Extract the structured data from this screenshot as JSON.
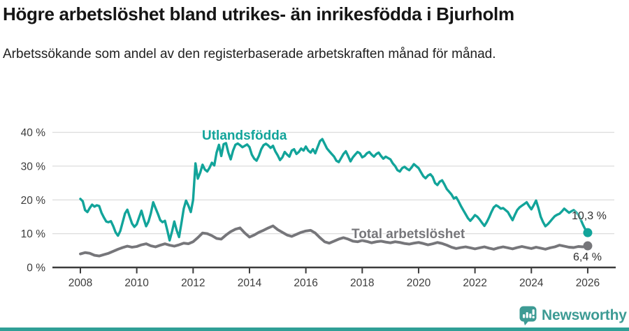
{
  "header": {
    "title": "Högre arbetslöshet bland utrikes- än inrikesfödda i Bjurholm",
    "subtitle": "Arbetssökande som andel av den registerbaserade arbetskraften månad för månad."
  },
  "footer": {
    "brand": "Newsworthy",
    "logo_icon": "newsworthy-speech-bubble-chart-icon",
    "accent_color": "#2f9f96"
  },
  "chart_data": {
    "type": "line",
    "title": "Högre arbetslöshet bland utrikes- än inrikesfödda i Bjurholm",
    "subtitle": "Arbetssökande som andel av den registerbaserade arbetskraften månad för månad.",
    "xlabel": "",
    "ylabel": "",
    "ylim": [
      0,
      40
    ],
    "xlim": [
      2007.6,
      2026.6
    ],
    "grid": "horizontal-only",
    "legend_position": "inline-labels",
    "yticks": [
      0,
      10,
      20,
      30,
      40
    ],
    "ytick_labels": [
      "0 %",
      "10 %",
      "20 %",
      "30 %",
      "40 %"
    ],
    "xticks": [
      2008,
      2010,
      2012,
      2014,
      2016,
      2018,
      2020,
      2022,
      2024,
      2026
    ],
    "xtick_labels": [
      "2008",
      "2010",
      "2012",
      "2014",
      "2016",
      "2018",
      "2020",
      "2022",
      "2024",
      "2026"
    ],
    "colors": {
      "utlandsfodda": "#12a49a",
      "total": "#76767a",
      "grid": "#dcdcdc",
      "axis": "#3c3c3c"
    },
    "series_labels": {
      "utlandsfodda": "Utlandsfödda",
      "total": "Total arbetslöshet"
    },
    "end_labels": {
      "utlandsfodda": "10,3 %",
      "total": "6,4 %"
    },
    "end_values": {
      "utlandsfodda": 10.3,
      "total": 6.4
    },
    "series": [
      {
        "name": "Utlandsfödda",
        "color_key": "utlandsfodda",
        "start_year": 2008.0,
        "step_months": 1,
        "values": [
          20.3,
          19.6,
          17.0,
          16.4,
          17.6,
          18.6,
          18.0,
          18.4,
          18.2,
          16.2,
          14.8,
          13.6,
          13.4,
          13.7,
          12.2,
          10.4,
          9.4,
          10.8,
          13.4,
          16.0,
          17.1,
          15.0,
          13.0,
          12.0,
          12.8,
          14.8,
          16.8,
          14.4,
          12.2,
          13.6,
          16.0,
          19.3,
          17.6,
          15.9,
          14.0,
          13.4,
          13.8,
          11.0,
          8.0,
          10.6,
          13.6,
          11.0,
          9.0,
          13.0,
          17.4,
          19.8,
          18.3,
          16.4,
          20.0,
          30.8,
          26.3,
          28.0,
          30.4,
          29.0,
          28.4,
          29.5,
          31.0,
          30.2,
          34.0,
          36.3,
          33.0,
          36.5,
          36.8,
          34.0,
          32.0,
          34.6,
          36.3,
          36.7,
          36.2,
          35.6,
          36.0,
          36.4,
          35.6,
          33.4,
          32.2,
          31.6,
          33.0,
          35.0,
          36.2,
          36.6,
          36.1,
          35.4,
          36.0,
          34.4,
          33.2,
          31.8,
          32.6,
          34.2,
          33.4,
          32.8,
          34.6,
          35.0,
          33.6,
          34.2,
          35.2,
          34.6,
          35.8,
          34.6,
          34.0,
          35.0,
          33.8,
          35.6,
          37.4,
          38.0,
          36.6,
          35.2,
          34.4,
          33.6,
          32.8,
          31.6,
          31.2,
          32.4,
          33.6,
          34.4,
          33.0,
          31.4,
          32.6,
          33.4,
          34.2,
          33.8,
          32.6,
          33.0,
          33.8,
          34.2,
          33.4,
          32.8,
          33.6,
          34.0,
          33.0,
          32.2,
          32.8,
          32.4,
          32.0,
          30.8,
          30.0,
          28.8,
          28.4,
          29.4,
          29.8,
          29.2,
          28.8,
          29.6,
          30.6,
          30.0,
          29.4,
          28.2,
          27.0,
          26.4,
          27.2,
          27.6,
          26.8,
          25.0,
          24.4,
          25.4,
          25.8,
          24.6,
          23.2,
          22.4,
          21.6,
          20.4,
          20.8,
          19.6,
          18.2,
          17.0,
          15.8,
          14.6,
          13.8,
          14.6,
          15.5,
          15.0,
          14.2,
          13.2,
          12.3,
          13.4,
          14.8,
          16.4,
          17.8,
          18.4,
          18.0,
          17.4,
          17.6,
          17.0,
          16.4,
          15.2,
          14.0,
          15.6,
          17.0,
          17.8,
          18.3,
          18.8,
          19.3,
          18.2,
          17.2,
          18.4,
          19.8,
          17.6,
          15.0,
          13.4,
          12.2,
          12.8,
          13.6,
          14.4,
          15.2,
          15.6,
          15.9,
          16.6,
          17.4,
          16.8,
          16.2,
          16.6,
          17.0,
          16.4,
          15.6,
          14.2,
          12.6,
          11.2,
          10.3
        ]
      },
      {
        "name": "Total arbetslöshet",
        "color_key": "total",
        "start_year": 2008.0,
        "step_months": 2,
        "values": [
          4.0,
          4.4,
          4.2,
          3.6,
          3.4,
          3.8,
          4.2,
          4.8,
          5.4,
          5.9,
          6.3,
          6.0,
          6.2,
          6.7,
          7.0,
          6.4,
          6.1,
          6.6,
          7.0,
          6.6,
          6.3,
          6.7,
          7.2,
          7.0,
          7.6,
          8.8,
          10.2,
          10.0,
          9.4,
          8.6,
          8.4,
          9.6,
          10.6,
          11.3,
          11.7,
          10.2,
          9.0,
          9.6,
          10.4,
          11.0,
          11.7,
          12.3,
          11.2,
          10.4,
          9.6,
          9.2,
          9.8,
          10.4,
          10.8,
          11.0,
          10.2,
          8.8,
          7.6,
          7.2,
          7.8,
          8.4,
          8.8,
          8.4,
          7.8,
          7.6,
          8.0,
          7.7,
          7.3,
          7.6,
          7.8,
          7.5,
          7.3,
          7.6,
          7.4,
          7.1,
          6.9,
          7.2,
          7.4,
          7.1,
          6.7,
          7.0,
          7.4,
          7.1,
          6.6,
          6.0,
          5.6,
          5.9,
          6.1,
          5.8,
          5.5,
          5.8,
          6.1,
          5.7,
          5.4,
          5.8,
          6.1,
          5.8,
          5.5,
          5.9,
          6.2,
          5.9,
          5.6,
          6.0,
          5.7,
          5.4,
          5.8,
          6.1,
          6.6,
          6.3,
          6.0,
          5.9,
          6.2,
          6.1,
          6.4
        ]
      }
    ]
  }
}
